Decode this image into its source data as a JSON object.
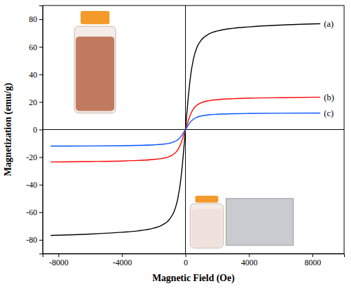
{
  "chart_data": {
    "type": "line",
    "x_label": "Magnetic Field (Oe)",
    "y_label": "Magnetization (emu/g)",
    "x": [
      -8500,
      -6000,
      -4000,
      -3000,
      -2000,
      -1500,
      -1000,
      -700,
      -500,
      -300,
      -150,
      0,
      150,
      300,
      500,
      700,
      1000,
      1500,
      2000,
      3000,
      4000,
      6000,
      8500
    ],
    "series": [
      {
        "name": "(a)",
        "color": "#000000",
        "values": [
          -76.8,
          -75.8,
          -74.5,
          -73.5,
          -71.5,
          -69.5,
          -65,
          -59,
          -51,
          -37,
          -20,
          0,
          20,
          37,
          51,
          59,
          65,
          69.5,
          71.5,
          73.5,
          74.5,
          75.8,
          76.8
        ]
      },
      {
        "name": "(b)",
        "color": "#ff0000",
        "values": [
          -23.5,
          -23.2,
          -22.8,
          -22.4,
          -21.7,
          -21,
          -19.5,
          -17.5,
          -15,
          -10.5,
          -5.5,
          0,
          5.5,
          10.5,
          15,
          17.5,
          19.5,
          21,
          21.7,
          22.4,
          22.8,
          23.2,
          23.5
        ]
      },
      {
        "name": "(c)",
        "color": "#0050ff",
        "values": [
          -12,
          -11.9,
          -11.7,
          -11.5,
          -11.1,
          -10.7,
          -9.9,
          -8.8,
          -7.5,
          -5.3,
          -2.8,
          0,
          2.8,
          5.3,
          7.5,
          8.8,
          9.9,
          10.7,
          11.1,
          11.5,
          11.7,
          11.9,
          12
        ]
      }
    ],
    "xlim": [
      -9000,
      10000
    ],
    "xticks": [
      -8000,
      -4000,
      0,
      4000,
      8000
    ],
    "ylim": [
      -90,
      90
    ],
    "yticks": [
      -80,
      -60,
      -40,
      -20,
      0,
      20,
      40,
      60,
      80
    ],
    "grid": false,
    "line_style": "solid"
  }
}
